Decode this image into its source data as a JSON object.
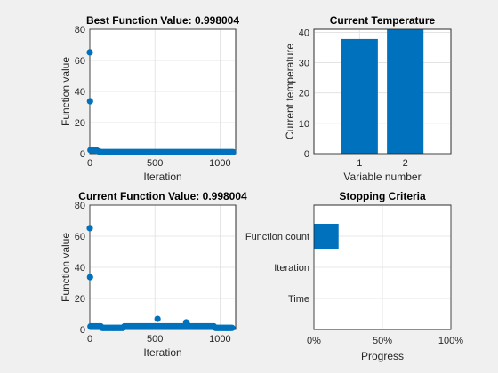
{
  "chart_data": [
    {
      "type": "scatter",
      "title": "Best Function Value: 0.998004",
      "xlabel": "Iteration",
      "ylabel": "Function value",
      "xlim": [
        0,
        1120
      ],
      "ylim": [
        0,
        80
      ],
      "xticks": [
        0,
        500,
        1000
      ],
      "yticks": [
        0,
        20,
        40,
        60,
        80
      ],
      "grid": true,
      "color": "#0072BD",
      "points": [
        [
          0,
          65.2
        ],
        [
          2,
          33.7
        ],
        [
          5,
          2.3
        ],
        [
          15,
          2.2
        ],
        [
          25,
          2.2
        ],
        [
          35,
          2.2
        ],
        [
          45,
          2.1
        ],
        [
          55,
          2.0
        ],
        [
          65,
          1.5
        ],
        [
          75,
          1.3
        ]
      ],
      "tail": {
        "x_start": 80,
        "x_end": 1100,
        "step": 12,
        "y": 0.998
      }
    },
    {
      "type": "bar",
      "title": "Current Temperature",
      "xlabel": "Variable number",
      "ylabel": "Current temperature",
      "categories": [
        "1",
        "2"
      ],
      "values": [
        37.8,
        41.3
      ],
      "ylim": [
        0,
        41
      ],
      "yticks": [
        0,
        10,
        20,
        30,
        40
      ],
      "grid": true,
      "color": "#0072BD"
    },
    {
      "type": "scatter",
      "title": "Current Function Value: 0.998004",
      "xlabel": "Iteration",
      "ylabel": "Function value",
      "xlim": [
        0,
        1120
      ],
      "ylim": [
        0,
        80
      ],
      "xticks": [
        0,
        500,
        1000
      ],
      "yticks": [
        0,
        20,
        40,
        60,
        80
      ],
      "grid": true,
      "color": "#0072BD",
      "points": [
        [
          0,
          65.2
        ],
        [
          2,
          33.7
        ],
        [
          520,
          6.8
        ],
        [
          740,
          4.6
        ],
        [
          745,
          3.8
        ]
      ],
      "segments": [
        {
          "x_start": 5,
          "x_end": 90,
          "step": 8,
          "y": 2.0
        },
        {
          "x_start": 95,
          "x_end": 260,
          "step": 8,
          "y": 1.0
        },
        {
          "x_start": 265,
          "x_end": 960,
          "step": 8,
          "y": 2.0
        },
        {
          "x_start": 965,
          "x_end": 1100,
          "step": 8,
          "y": 1.0
        }
      ]
    },
    {
      "type": "bar",
      "orientation": "horizontal",
      "title": "Stopping Criteria",
      "xlabel": "Progress",
      "categories": [
        "Function count",
        "Iteration",
        "Time"
      ],
      "values": [
        18,
        0,
        0
      ],
      "xlim": [
        0,
        100
      ],
      "xticks": [
        "0%",
        "50%",
        "100%"
      ],
      "grid": true,
      "color": "#0072BD"
    }
  ]
}
